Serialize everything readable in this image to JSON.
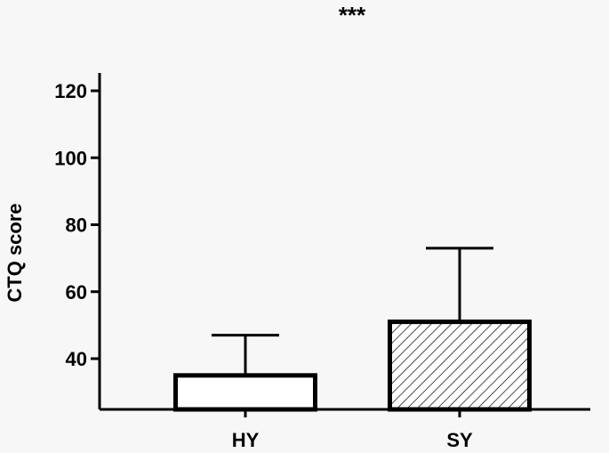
{
  "chart_data": {
    "type": "bar",
    "categories": [
      "HY",
      "SY"
    ],
    "values": [
      35,
      51
    ],
    "error_upper": [
      47,
      73
    ],
    "ylabel": "CTQ score",
    "ylim": [
      25,
      125
    ],
    "yticks": [
      40,
      60,
      80,
      100,
      120
    ],
    "ytick_labels": [
      "40",
      "60",
      "80",
      "100",
      "120"
    ],
    "annotation": "***",
    "bar_fills": [
      "#ffffff",
      "hatched"
    ],
    "grid": false,
    "legend": "none"
  }
}
